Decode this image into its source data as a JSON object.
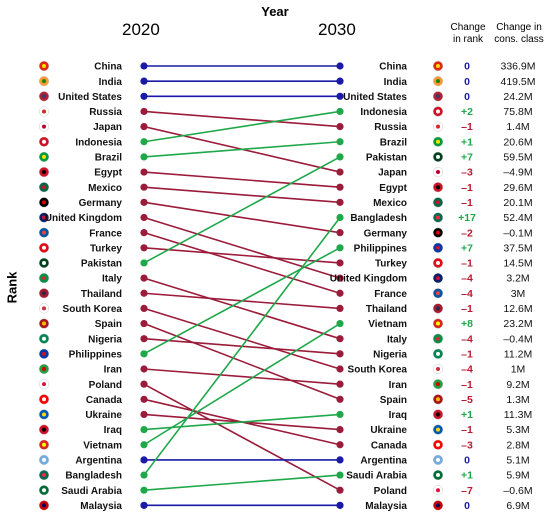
{
  "title": "Year",
  "ylabel": "Rank",
  "headers": {
    "left_year": "2020",
    "right_year": "2030",
    "change_rank": [
      "Change",
      "in rank"
    ],
    "change_class": [
      "Change in",
      "cons. class"
    ]
  },
  "colors": {
    "same": "#1a1aa6",
    "up": "#1fa84a",
    "down": "#9b1c3a",
    "up_text": "#1fa84a",
    "down_text": "#c0182e",
    "same_text": "#1a1aa6"
  },
  "chart_data": {
    "type": "slope",
    "rank_2020": [
      "China",
      "India",
      "United States",
      "Russia",
      "Japan",
      "Indonesia",
      "Brazil",
      "Egypt",
      "Mexico",
      "Germany",
      "United Kingdom",
      "France",
      "Turkey",
      "Pakistan",
      "Italy",
      "Thailand",
      "South Korea",
      "Spain",
      "Nigeria",
      "Philippines",
      "Iran",
      "Poland",
      "Canada",
      "Ukraine",
      "Iraq",
      "Vietnam",
      "Argentina",
      "Bangladesh",
      "Saudi Arabia",
      "Malaysia"
    ],
    "rank_2030": [
      "China",
      "India",
      "United States",
      "Indonesia",
      "Russia",
      "Brazil",
      "Pakistan",
      "Japan",
      "Egypt",
      "Mexico",
      "Bangladesh",
      "Germany",
      "Philippines",
      "Turkey",
      "United Kingdom",
      "France",
      "Thailand",
      "Vietnam",
      "Italy",
      "Nigeria",
      "South Korea",
      "Iran",
      "Spain",
      "Iraq",
      "Ukraine",
      "Canada",
      "Argentina",
      "Saudi Arabia",
      "Poland",
      "Malaysia"
    ],
    "change_in_rank": [
      "0",
      "0",
      "0",
      "+2",
      "–1",
      "+1",
      "+7",
      "–3",
      "–1",
      "–1",
      "+17",
      "–2",
      "+7",
      "–1",
      "–4",
      "–4",
      "–1",
      "+8",
      "–4",
      "–1",
      "–4",
      "–1",
      "–5",
      "+1",
      "–1",
      "–3",
      "0",
      "+1",
      "–7",
      "0"
    ],
    "change_in_consumer_class": [
      "336.9M",
      "419.5M",
      "24.2M",
      "75.8M",
      "1.4M",
      "20.6M",
      "59.5M",
      "–4.9M",
      "29.6M",
      "20.1M",
      "52.4M",
      "–0.1M",
      "37.5M",
      "14.5M",
      "3.2M",
      "3M",
      "12.6M",
      "23.2M",
      "–0.4M",
      "11.2M",
      "1M",
      "9.2M",
      "1.3M",
      "11.3M",
      "5.3M",
      "2.8M",
      "5.1M",
      "5.9M",
      "–0.6M",
      "6.9M"
    ]
  },
  "flag_colors": {
    "China": [
      "#de2910",
      "#ffde00"
    ],
    "India": [
      "#ff9933",
      "#138808"
    ],
    "United States": [
      "#b22234",
      "#3c3b6e"
    ],
    "Russia": [
      "#ffffff",
      "#d52b1e"
    ],
    "Japan": [
      "#ffffff",
      "#bc002d"
    ],
    "Indonesia": [
      "#ce1126",
      "#ffffff"
    ],
    "Brazil": [
      "#009c3b",
      "#ffdf00"
    ],
    "Egypt": [
      "#ce1126",
      "#000000"
    ],
    "Mexico": [
      "#006847",
      "#ce1126"
    ],
    "Germany": [
      "#000000",
      "#dd0000"
    ],
    "United Kingdom": [
      "#012169",
      "#c8102e"
    ],
    "France": [
      "#0055a4",
      "#ef4135"
    ],
    "Turkey": [
      "#e30a17",
      "#ffffff"
    ],
    "Pakistan": [
      "#01411c",
      "#ffffff"
    ],
    "Italy": [
      "#009246",
      "#ce2b37"
    ],
    "Thailand": [
      "#a51931",
      "#2d2a4a"
    ],
    "South Korea": [
      "#ffffff",
      "#cd2e3a"
    ],
    "Spain": [
      "#aa151b",
      "#f1bf00"
    ],
    "Nigeria": [
      "#008751",
      "#ffffff"
    ],
    "Philippines": [
      "#0038a8",
      "#ce1126"
    ],
    "Iran": [
      "#239f40",
      "#da0000"
    ],
    "Poland": [
      "#ffffff",
      "#dc143c"
    ],
    "Canada": [
      "#ff0000",
      "#ffffff"
    ],
    "Ukraine": [
      "#0057b7",
      "#ffd700"
    ],
    "Iraq": [
      "#ce1126",
      "#000000"
    ],
    "Vietnam": [
      "#da251d",
      "#ffff00"
    ],
    "Argentina": [
      "#74acdf",
      "#ffffff"
    ],
    "Bangladesh": [
      "#006a4e",
      "#f42a41"
    ],
    "Saudi Arabia": [
      "#006c35",
      "#ffffff"
    ],
    "Malaysia": [
      "#cc0001",
      "#010066"
    ]
  }
}
